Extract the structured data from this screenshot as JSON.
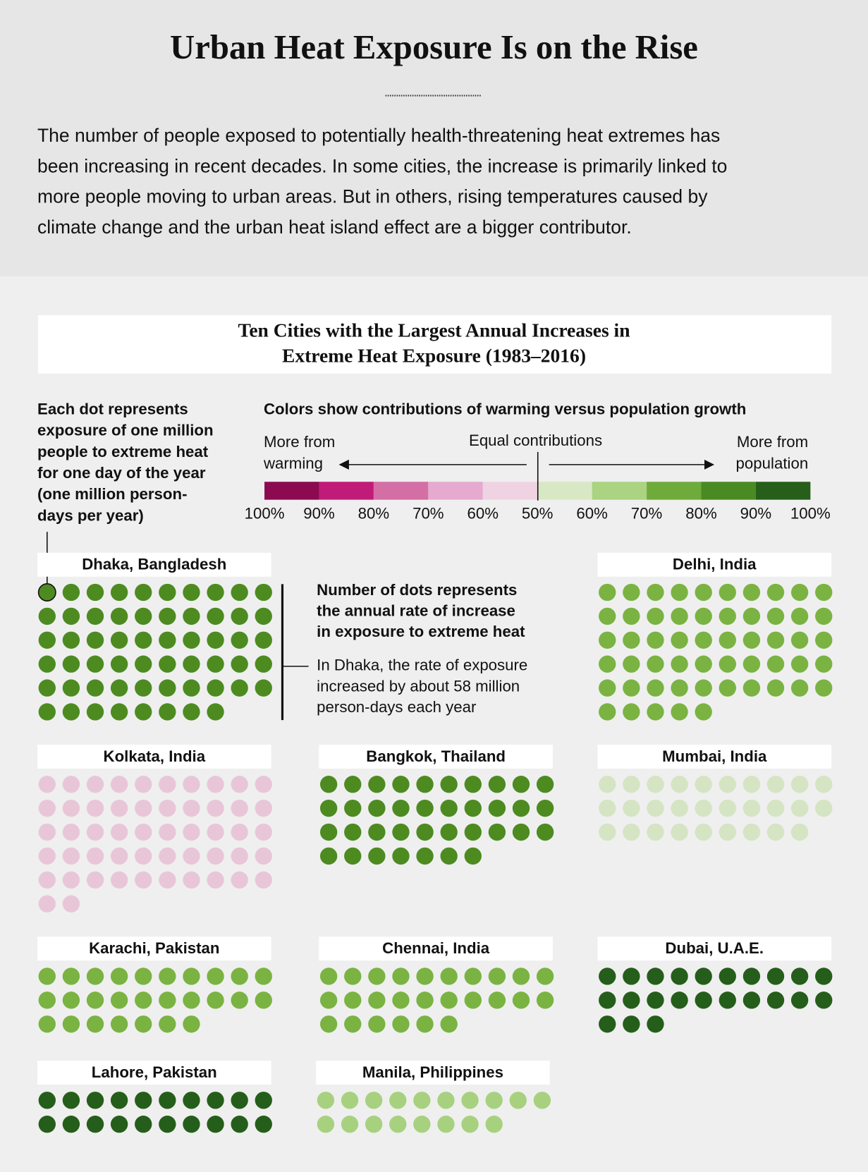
{
  "header": {
    "title": "Urban Heat Exposure Is on the Rise",
    "intro": [
      "The number of people exposed to potentially health-threatening heat extremes has",
      "been increasing in recent decades. In some cities, the increase is primarily linked to",
      "more people moving to urban areas. But in others, rising temperatures caused by",
      "climate change and the urban heat island effect are a bigger contributor."
    ]
  },
  "chart_data": {
    "type": "waffle",
    "title": [
      "Ten Cities with the Largest Annual Increases in",
      "Extreme Heat Exposure (1983–2016)"
    ],
    "dot_note": [
      "Each dot represents",
      "exposure of one million",
      "people to extreme heat",
      "for one day of the year",
      "(one million person-",
      "days per year)"
    ],
    "legend": {
      "title": "Colors show contributions of warming versus population growth",
      "left_label": [
        "More from",
        "warming"
      ],
      "center_label": "Equal contributions",
      "right_label": [
        "More from",
        "population"
      ],
      "colors": [
        "#8b0a50",
        "#c11b7a",
        "#d46fa5",
        "#e6a9cf",
        "#f0d3e2",
        "#d9e8c4",
        "#aad382",
        "#6fab3b",
        "#4a8a23",
        "#275f1a"
      ],
      "labels": [
        "100%",
        "90%",
        "80%",
        "70%",
        "60%",
        "50%",
        "60%",
        "70%",
        "80%",
        "90%",
        "100%"
      ]
    },
    "annotation": {
      "heading": [
        "Number of dots represents",
        "the annual rate of increase",
        "in exposure to extreme heat"
      ],
      "text": [
        "In Dhaka, the rate of exposure",
        "increased by about 58 million",
        "person-days each year"
      ]
    },
    "categories": [
      "Dhaka, Bangladesh",
      "Delhi, India",
      "Kolkata, India",
      "Bangkok, Thailand",
      "Mumbai, India",
      "Karachi, Pakistan",
      "Chennai, India",
      "Dubai, U.A.E.",
      "Lahore, Pakistan",
      "Manila, Philippines"
    ],
    "values": [
      58,
      55,
      52,
      37,
      29,
      27,
      26,
      23,
      20,
      18
    ],
    "colors": [
      "#4d8b21",
      "#7ab342",
      "#e8c6d8",
      "#4d8b21",
      "#d5e4c2",
      "#7ab342",
      "#7ab342",
      "#255e1a",
      "#255e1a",
      "#a8d17f"
    ]
  }
}
